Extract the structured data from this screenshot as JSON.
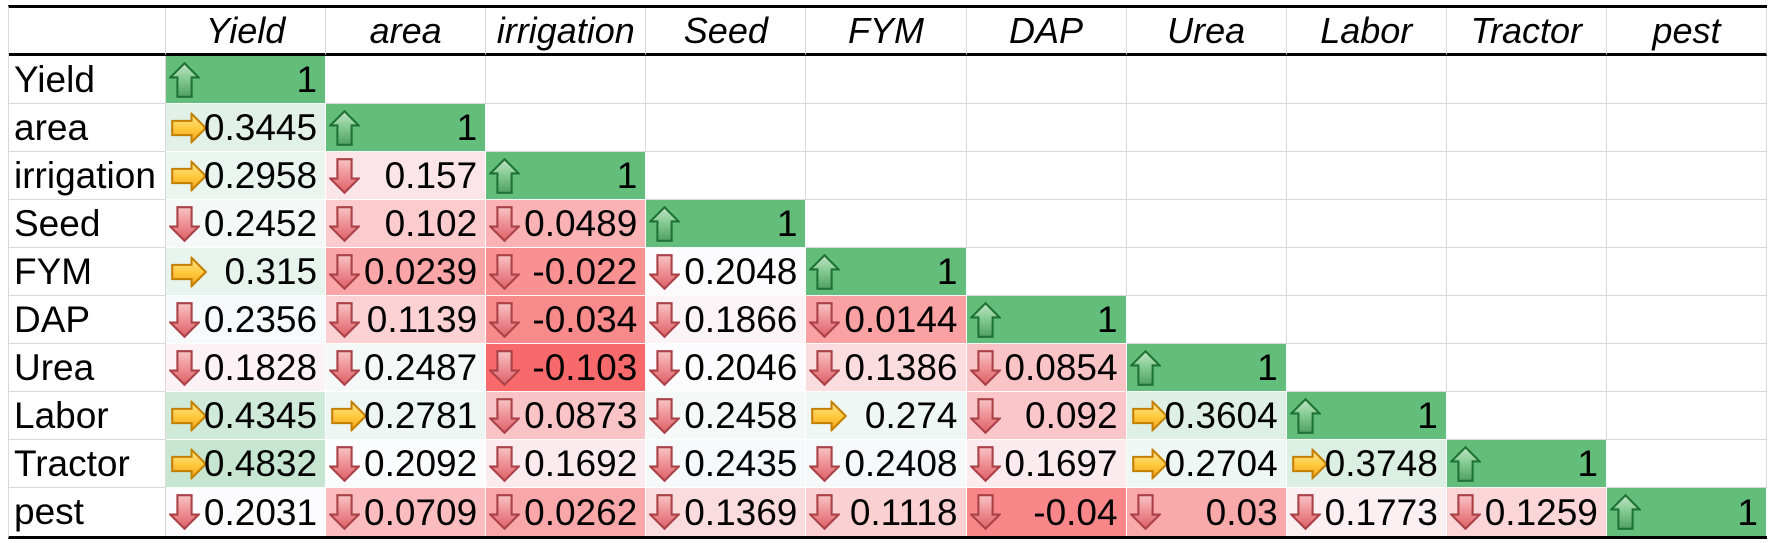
{
  "chart_data": {
    "type": "heatmap",
    "columns": [
      "Yield",
      "area",
      "irrigation",
      "Seed",
      "FYM",
      "DAP",
      "Urea",
      "Labor",
      "Tractor",
      "pest"
    ],
    "rows": [
      {
        "label": "Yield",
        "values": [
          "1"
        ],
        "icons": [
          "up"
        ]
      },
      {
        "label": "area",
        "values": [
          "0.3445",
          "1"
        ],
        "icons": [
          "right",
          "up"
        ]
      },
      {
        "label": "irrigation",
        "values": [
          "0.2958",
          "0.157",
          "1"
        ],
        "icons": [
          "right",
          "down",
          "up"
        ]
      },
      {
        "label": "Seed",
        "values": [
          "0.2452",
          "0.102",
          "0.0489",
          "1"
        ],
        "icons": [
          "down",
          "down",
          "down",
          "up"
        ]
      },
      {
        "label": "FYM",
        "values": [
          "0.315",
          "0.0239",
          "-0.022",
          "0.2048",
          "1"
        ],
        "icons": [
          "right",
          "down",
          "down",
          "down",
          "up"
        ]
      },
      {
        "label": "DAP",
        "values": [
          "0.2356",
          "0.1139",
          "-0.034",
          "0.1866",
          "0.0144",
          "1"
        ],
        "icons": [
          "down",
          "down",
          "down",
          "down",
          "down",
          "up"
        ]
      },
      {
        "label": "Urea",
        "values": [
          "0.1828",
          "0.2487",
          "-0.103",
          "0.2046",
          "0.1386",
          "0.0854",
          "1"
        ],
        "icons": [
          "down",
          "down",
          "down",
          "down",
          "down",
          "down",
          "up"
        ]
      },
      {
        "label": "Labor",
        "values": [
          "0.4345",
          "0.2781",
          "0.0873",
          "0.2458",
          "0.274",
          "0.092",
          "0.3604",
          "1"
        ],
        "icons": [
          "right",
          "right",
          "down",
          "down",
          "right",
          "down",
          "right",
          "up"
        ]
      },
      {
        "label": "Tractor",
        "values": [
          "0.4832",
          "0.2092",
          "0.1692",
          "0.2435",
          "0.2408",
          "0.1697",
          "0.2704",
          "0.3748",
          "1"
        ],
        "icons": [
          "right",
          "down",
          "down",
          "down",
          "down",
          "down",
          "right",
          "right",
          "up"
        ]
      },
      {
        "label": "pest",
        "values": [
          "0.2031",
          "0.0709",
          "0.0262",
          "0.1369",
          "0.1118",
          "-0.04",
          "0.03",
          "0.1773",
          "0.1259",
          "1"
        ],
        "icons": [
          "down",
          "down",
          "down",
          "down",
          "down",
          "down",
          "down",
          "down",
          "down",
          "up"
        ]
      }
    ],
    "color_scale": {
      "min_value": -0.103,
      "mid_value": 0.2048,
      "max_value": 1,
      "min_color": "#F8696B",
      "mid_color": "#FCFCFF",
      "max_color": "#63BE7B"
    },
    "icon_legend": {
      "up": "green-up-arrow",
      "right": "yellow-right-arrow",
      "down": "red-down-arrow"
    }
  },
  "style": {
    "grid_color": "#D9D9D9",
    "rule_color": "#000000",
    "text_color": "#000000",
    "icon_colors": {
      "up": "#57A86B",
      "right": "#F6A21D",
      "down": "#DC6167"
    }
  }
}
